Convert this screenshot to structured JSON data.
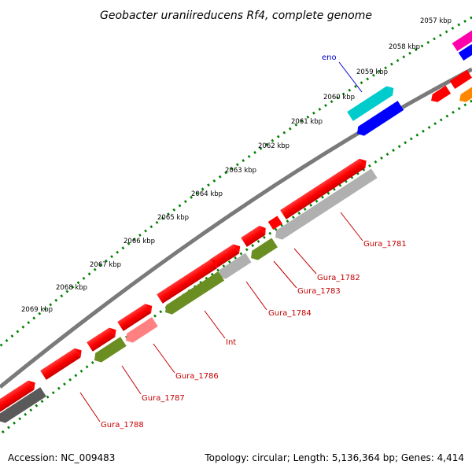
{
  "title": "Geobacter uraniireducens Rf4, complete genome",
  "footer": {
    "accession": "Accession: NC_009483",
    "summary": "Topology: circular; Length: 5,136,364 bp; Genes: 4,414"
  },
  "ticks": [
    "2057 kbp",
    "2058 kbp",
    "2059 kbp",
    "2060 kbp",
    "2061 kbp",
    "2062 kbp",
    "2063 kbp",
    "2064 kbp",
    "2065 kbp",
    "2066 kbp",
    "2067 kbp",
    "2068 kbp",
    "2069 kbp"
  ],
  "gene_labels": {
    "eno": "eno",
    "gura_1781": "Gura_1781",
    "gura_1782": "Gura_1782",
    "gura_1783": "Gura_1783",
    "gura_1784": "Gura_1784",
    "int": "Int",
    "gura_1786": "Gura_1786",
    "gura_1787": "Gura_1787",
    "gura_1788": "Gura_1788"
  },
  "colors": {
    "cds_red": "#ff0000",
    "cds_light_red": "#ff8080",
    "cds_blue": "#0000ff",
    "cds_cyan": "#00cccc",
    "cds_magenta": "#ff00aa",
    "cds_orange": "#ff8800",
    "cds_gray": "#aaaaaa",
    "cds_dark_gray": "#555555",
    "cds_olive": "#6b8e23",
    "backbone": "#808080",
    "tick_green": "#008000",
    "label_red": "#c40000",
    "label_blue": "#0000cc"
  }
}
